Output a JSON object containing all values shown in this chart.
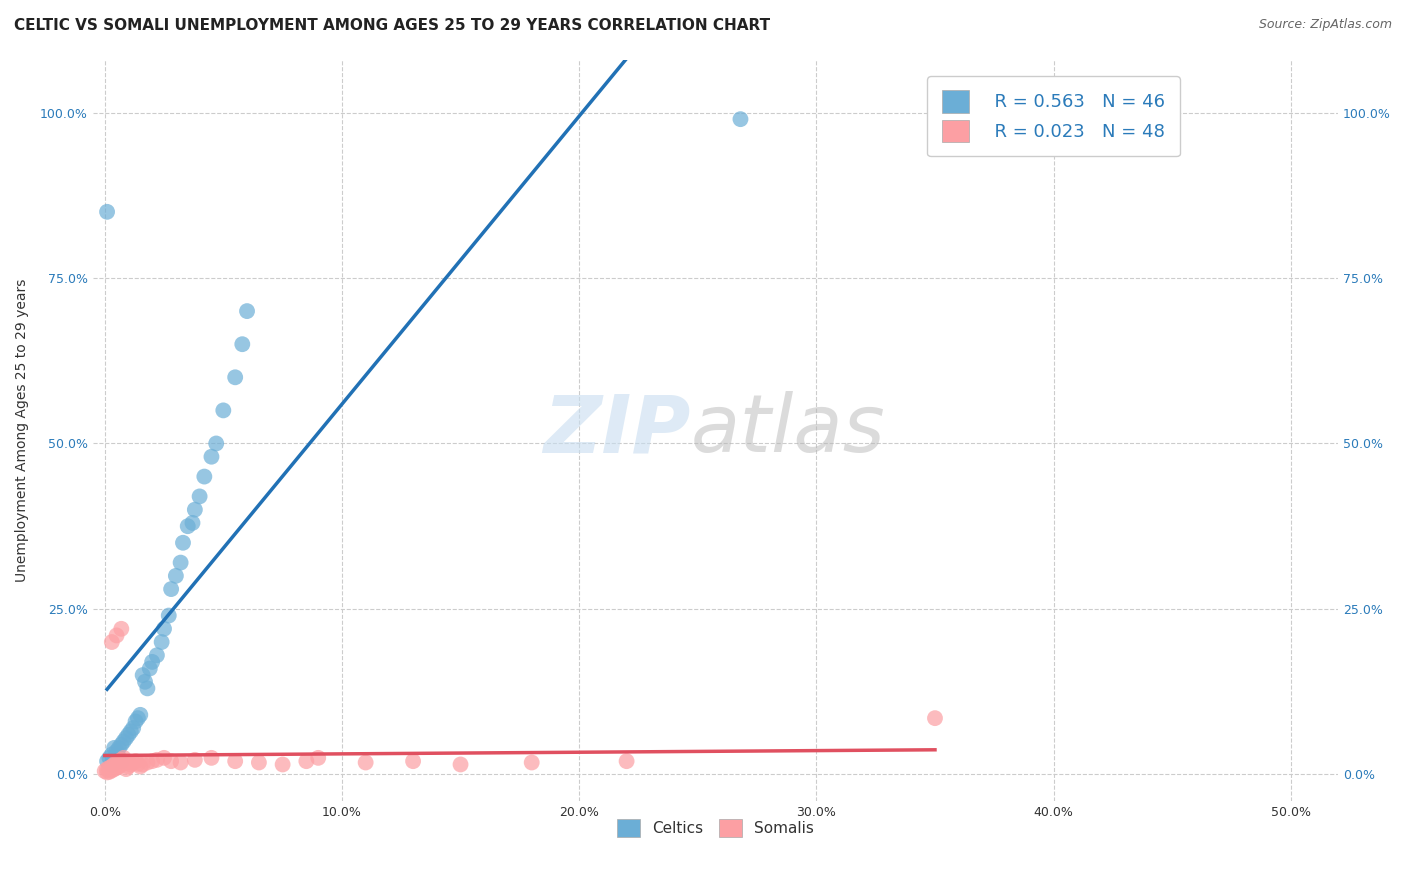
{
  "title": "CELTIC VS SOMALI UNEMPLOYMENT AMONG AGES 25 TO 29 YEARS CORRELATION CHART",
  "source": "Source: ZipAtlas.com",
  "ylabel_label": "Unemployment Among Ages 25 to 29 years",
  "xlim": [
    -0.005,
    0.52
  ],
  "ylim": [
    -0.04,
    1.08
  ],
  "celtic_color": "#6baed6",
  "somali_color": "#fc9fa3",
  "celtic_line_color": "#2171b5",
  "somali_line_color": "#e05060",
  "legend_R_celtic": "R = 0.563",
  "legend_N_celtic": "N = 46",
  "legend_R_somali": "R = 0.023",
  "legend_N_somali": "N = 48",
  "grid_color": "#cccccc",
  "title_fontsize": 11,
  "axis_fontsize": 9,
  "legend_fontsize": 13,
  "source_fontsize": 9,
  "celtic_x": [
    0.001,
    0.002,
    0.003,
    0.003,
    0.004,
    0.004,
    0.005,
    0.005,
    0.006,
    0.006,
    0.007,
    0.007,
    0.008,
    0.009,
    0.01,
    0.011,
    0.012,
    0.013,
    0.014,
    0.015,
    0.016,
    0.017,
    0.018,
    0.019,
    0.02,
    0.022,
    0.024,
    0.025,
    0.027,
    0.028,
    0.03,
    0.032,
    0.033,
    0.035,
    0.037,
    0.038,
    0.04,
    0.042,
    0.045,
    0.047,
    0.05,
    0.055,
    0.058,
    0.06,
    0.268,
    0.001
  ],
  "celtic_y": [
    0.02,
    0.025,
    0.03,
    0.015,
    0.04,
    0.02,
    0.035,
    0.02,
    0.04,
    0.025,
    0.045,
    0.02,
    0.05,
    0.055,
    0.06,
    0.065,
    0.07,
    0.08,
    0.085,
    0.09,
    0.15,
    0.14,
    0.13,
    0.16,
    0.17,
    0.18,
    0.2,
    0.22,
    0.24,
    0.28,
    0.3,
    0.32,
    0.35,
    0.375,
    0.38,
    0.4,
    0.42,
    0.45,
    0.48,
    0.5,
    0.55,
    0.6,
    0.65,
    0.7,
    0.99,
    0.85
  ],
  "somali_x": [
    0.0,
    0.001,
    0.001,
    0.002,
    0.002,
    0.003,
    0.003,
    0.004,
    0.004,
    0.005,
    0.005,
    0.006,
    0.006,
    0.007,
    0.007,
    0.008,
    0.008,
    0.009,
    0.009,
    0.01,
    0.011,
    0.012,
    0.013,
    0.014,
    0.015,
    0.016,
    0.018,
    0.02,
    0.022,
    0.025,
    0.028,
    0.032,
    0.038,
    0.045,
    0.055,
    0.065,
    0.075,
    0.085,
    0.09,
    0.11,
    0.13,
    0.15,
    0.18,
    0.22,
    0.35,
    0.003,
    0.005,
    0.007
  ],
  "somali_y": [
    0.005,
    0.003,
    0.008,
    0.004,
    0.01,
    0.006,
    0.012,
    0.008,
    0.015,
    0.01,
    0.018,
    0.012,
    0.02,
    0.015,
    0.022,
    0.018,
    0.025,
    0.018,
    0.008,
    0.012,
    0.015,
    0.018,
    0.02,
    0.016,
    0.012,
    0.015,
    0.018,
    0.02,
    0.022,
    0.025,
    0.02,
    0.018,
    0.022,
    0.025,
    0.02,
    0.018,
    0.015,
    0.02,
    0.025,
    0.018,
    0.02,
    0.015,
    0.018,
    0.02,
    0.085,
    0.2,
    0.21,
    0.22
  ]
}
